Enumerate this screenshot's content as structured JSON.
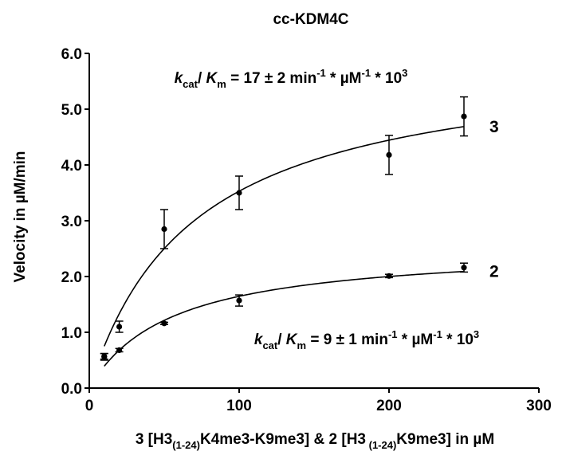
{
  "chart_data": {
    "type": "scatter",
    "title": "cc-KDM4C",
    "xlabel": {
      "parts": [
        {
          "text": "3 [H3",
          "style": "normal"
        },
        {
          "text": "(1-24)",
          "style": "sub"
        },
        {
          "text": "K4me3-K9me3] & 2 [H3",
          "style": "normal"
        },
        {
          "text": " (1-24)",
          "style": "sub"
        },
        {
          "text": "K9me3] in µM",
          "style": "normal"
        }
      ]
    },
    "ylabel": "Velocity in µM/min",
    "xlim": [
      0,
      300
    ],
    "ylim": [
      0,
      6
    ],
    "xticks": [
      0,
      100,
      200,
      300
    ],
    "xtick_labels": [
      "0",
      "100",
      "200",
      "300"
    ],
    "yticks": [
      0,
      1,
      2,
      3,
      4,
      5,
      6
    ],
    "ytick_labels": [
      "0.0",
      "1.0",
      "2.0",
      "3.0",
      "4.0",
      "5.0",
      "6.0"
    ],
    "grid": false,
    "series": [
      {
        "name": "3",
        "x": [
          10,
          20,
          50,
          100,
          200,
          250
        ],
        "y": [
          0.57,
          1.1,
          2.85,
          3.5,
          4.18,
          4.87
        ],
        "err": [
          0.05,
          0.1,
          0.35,
          0.3,
          0.35,
          0.35
        ],
        "fit": {
          "model": "michaelis-menten",
          "vmax": 6.0,
          "km": 70
        }
      },
      {
        "name": "2",
        "x": [
          10,
          20,
          50,
          100,
          200,
          250
        ],
        "y": [
          0.56,
          0.68,
          1.16,
          1.57,
          2.01,
          2.16
        ],
        "err": [
          0.06,
          0.03,
          0.02,
          0.1,
          0.03,
          0.08
        ],
        "fit": {
          "model": "michaelis-menten",
          "vmax": 2.55,
          "km": 55
        }
      }
    ],
    "annotations": [
      {
        "id": "annotation-series-3",
        "parts": [
          {
            "text": "k",
            "style": "italic"
          },
          {
            "text": "cat",
            "style": "sub"
          },
          {
            "text": "/ ",
            "style": "normal"
          },
          {
            "text": "K",
            "style": "italic"
          },
          {
            "text": "m",
            "style": "sub"
          },
          {
            "text": " = 17 ± 2 min",
            "style": "normal"
          },
          {
            "text": "-1",
            "style": "sup"
          },
          {
            "text": " * µM",
            "style": "normal"
          },
          {
            "text": "-1",
            "style": "sup"
          },
          {
            "text": " * 10",
            "style": "normal"
          },
          {
            "text": "3",
            "style": "sup"
          }
        ]
      },
      {
        "id": "annotation-series-2",
        "parts": [
          {
            "text": "k",
            "style": "italic"
          },
          {
            "text": "cat",
            "style": "sub"
          },
          {
            "text": "/ ",
            "style": "normal"
          },
          {
            "text": "K",
            "style": "italic"
          },
          {
            "text": "m",
            "style": "sub"
          },
          {
            "text": " = 9 ± 1 min",
            "style": "normal"
          },
          {
            "text": "-1",
            "style": "sup"
          },
          {
            "text": " * µM",
            "style": "normal"
          },
          {
            "text": "-1",
            "style": "sup"
          },
          {
            "text": " * 10",
            "style": "normal"
          },
          {
            "text": "3",
            "style": "sup"
          }
        ]
      }
    ]
  }
}
